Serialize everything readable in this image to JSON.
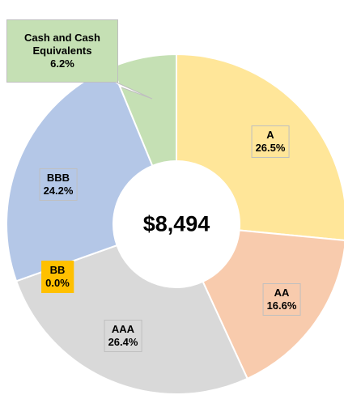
{
  "chart_data": {
    "type": "donut",
    "center_label": "$8,494",
    "categories": [
      "A",
      "AA",
      "AAA",
      "BB",
      "BBB",
      "Cash and Cash Equivalents"
    ],
    "values": [
      26.5,
      16.6,
      26.4,
      0.0,
      24.2,
      6.2
    ],
    "value_labels": [
      "26.5%",
      "16.6%",
      "26.4%",
      "0.0%",
      "24.2%",
      "6.2%"
    ],
    "colors": [
      "#FFE699",
      "#F8CBAD",
      "#D9D9D9",
      "#FFC000",
      "#B4C7E7",
      "#C5E0B4"
    ]
  }
}
